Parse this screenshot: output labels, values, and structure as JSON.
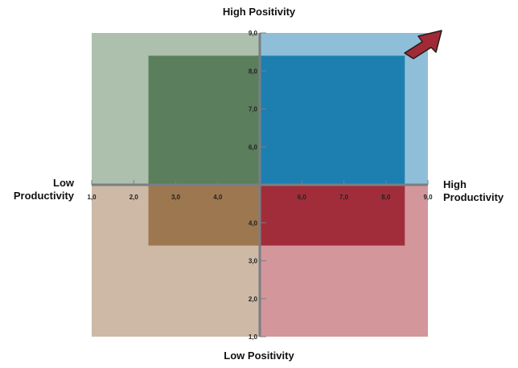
{
  "labels": {
    "top": "High Positivity",
    "bottom": "Low Positivity",
    "left_line1": "Low",
    "left_line2": "Productivity",
    "right_line1": "High",
    "right_line2": "Productivity"
  },
  "axes": {
    "x_ticks": [
      {
        "value": 1.0,
        "label": "1,0"
      },
      {
        "value": 2.0,
        "label": "2,0"
      },
      {
        "value": 3.0,
        "label": "3,0"
      },
      {
        "value": 4.0,
        "label": "4,0"
      },
      {
        "value": 6.0,
        "label": "6,0"
      },
      {
        "value": 7.0,
        "label": "7,0"
      },
      {
        "value": 8.0,
        "label": "8,0"
      },
      {
        "value": 9.0,
        "label": "9,0"
      }
    ],
    "y_ticks": [
      {
        "value": 1.0,
        "label": "1,0"
      },
      {
        "value": 2.0,
        "label": "2,0"
      },
      {
        "value": 3.0,
        "label": "3,0"
      },
      {
        "value": 4.0,
        "label": "4,0"
      },
      {
        "value": 6.0,
        "label": "6,0"
      },
      {
        "value": 7.0,
        "label": "7,0"
      },
      {
        "value": 8.0,
        "label": "8,0"
      },
      {
        "value": 9.0,
        "label": "9,0"
      }
    ],
    "x_range": [
      1.0,
      9.0
    ],
    "y_range": [
      1.0,
      9.0
    ],
    "center": [
      5.0,
      5.0
    ],
    "axis_color": "#7a7e84"
  },
  "quadrants": [
    {
      "name": "top-left",
      "outer_color": "#adbfad",
      "inner_color": "#5b7f5c",
      "x": [
        1.0,
        5.0
      ],
      "y": [
        5.0,
        9.0
      ],
      "inner_x": [
        2.35,
        5.0
      ],
      "inner_y": [
        5.0,
        8.4
      ]
    },
    {
      "name": "top-right",
      "outer_color": "#8fbfd8",
      "inner_color": "#1c7fb0",
      "x": [
        5.0,
        9.0
      ],
      "y": [
        5.0,
        9.0
      ],
      "inner_x": [
        5.0,
        8.45
      ],
      "inner_y": [
        5.0,
        8.4
      ]
    },
    {
      "name": "bottom-left",
      "outer_color": "#cdb9a6",
      "inner_color": "#9d774f",
      "x": [
        1.0,
        5.0
      ],
      "y": [
        1.0,
        5.0
      ],
      "inner_x": [
        2.35,
        5.0
      ],
      "inner_y": [
        3.4,
        5.0
      ]
    },
    {
      "name": "bottom-right",
      "outer_color": "#d3969b",
      "inner_color": "#a22d3a",
      "x": [
        5.0,
        9.0
      ],
      "y": [
        1.0,
        5.0
      ],
      "inner_x": [
        5.0,
        8.45
      ],
      "inner_y": [
        3.4,
        5.0
      ]
    }
  ],
  "arrow": {
    "color": "#a02a36",
    "outline": "#2a1a1a",
    "icon": "arrow-up-right-icon"
  }
}
